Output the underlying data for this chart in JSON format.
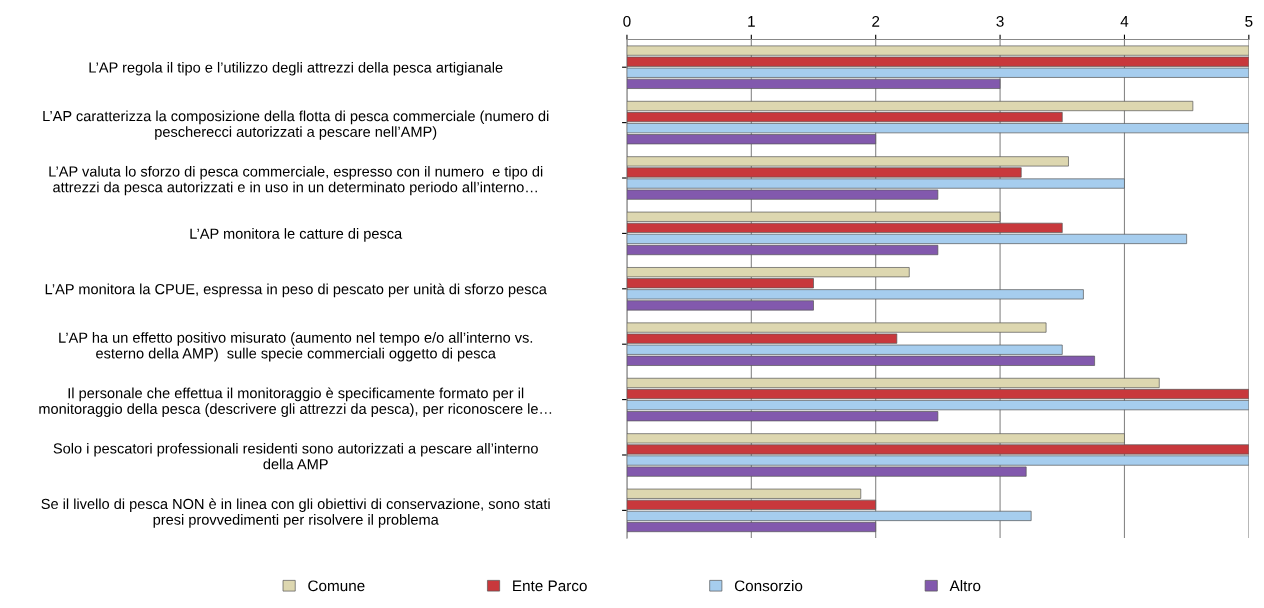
{
  "chart_data": {
    "type": "bar",
    "orientation": "horizontal",
    "categories": [
      "L’AP regola il tipo e l’utilizzo degli attrezzi della pesca artigianale",
      "L’AP caratterizza la composizione della flotta di pesca commerciale (numero di\npescherecci autorizzati a pescare nell’AMP)",
      "L’AP valuta lo sforzo di pesca commerciale, espresso con il numero  e tipo di\nattrezzi da pesca autorizzati e in uso in un determinato periodo all’interno…",
      "L’AP monitora le catture di pesca",
      "L’AP monitora la CPUE, espressa in peso di pescato per unità di sforzo pesca",
      "L’AP ha un effetto positivo misurato (aumento nel tempo e/o all’interno vs.\nesterno della AMP)  sulle specie commerciali oggetto di pesca",
      "Il personale che effettua il monitoraggio è specificamente formato per il\nmonitoraggio della pesca (descrivere gli attrezzi da pesca), per riconoscere le…",
      "Solo i pescatori professionali residenti sono autorizzati a pescare all’interno\ndella AMP",
      "Se il livello di pesca NON è in linea con gli obiettivi di conservazione, sono stati\npresi provvedimenti per risolvere il problema"
    ],
    "series": [
      {
        "name": "Comune",
        "color": "#ddd7b0",
        "values": [
          5,
          4.55,
          3.55,
          3,
          2.27,
          3.37,
          4.28,
          4,
          1.88
        ]
      },
      {
        "name": "Ente Parco",
        "color": "#c8383c",
        "values": [
          5,
          3.5,
          3.17,
          3.5,
          1.5,
          2.17,
          5,
          5,
          2
        ]
      },
      {
        "name": "Consorzio",
        "color": "#a6cdee",
        "values": [
          5,
          5,
          4,
          4.5,
          3.67,
          3.5,
          5,
          5,
          3.25
        ]
      },
      {
        "name": "Altro",
        "color": "#8259ad",
        "values": [
          3,
          2,
          2.5,
          2.5,
          1.5,
          3.76,
          2.5,
          3.21,
          2
        ]
      }
    ],
    "xlim": [
      0,
      5
    ],
    "xticks": [
      0,
      1,
      2,
      3,
      4,
      5
    ],
    "grid": "x",
    "legend": "bottom"
  }
}
